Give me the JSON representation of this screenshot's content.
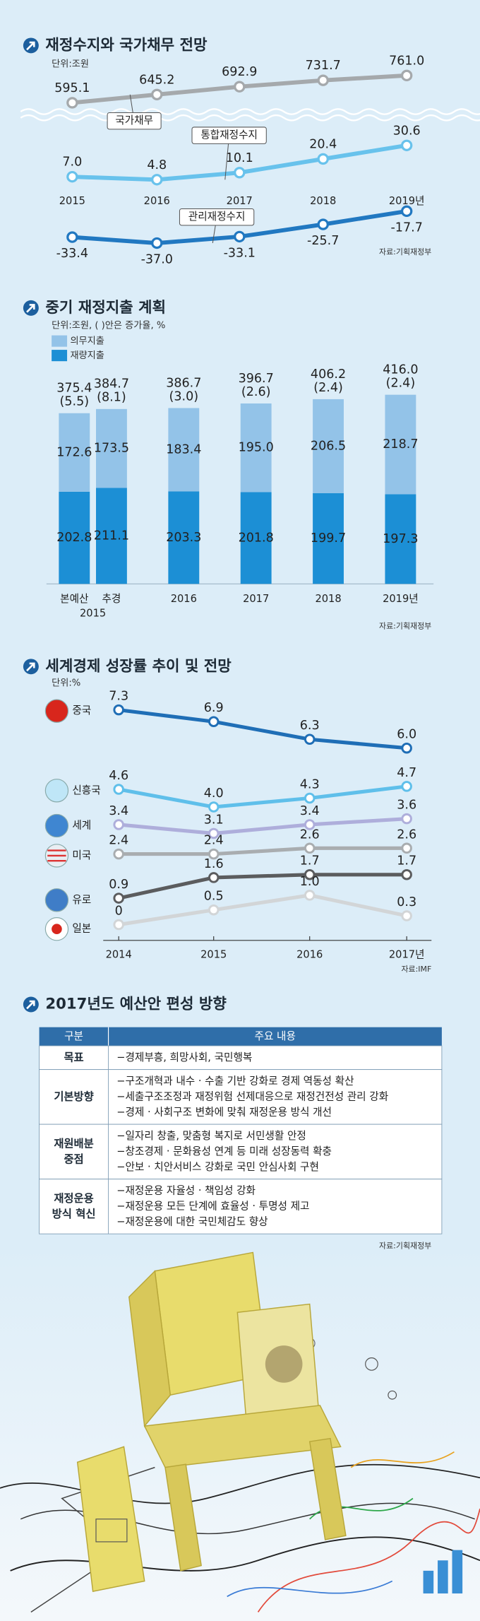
{
  "chart_data": [
    {
      "type": "line",
      "title": "재정수지와 국가채무 전망",
      "unit": "단위:조원",
      "categories": [
        "2015",
        "2016",
        "2017",
        "2018",
        "2019년"
      ],
      "series": [
        {
          "name": "국가채무",
          "color": "#a5a9ac",
          "values": [
            595.1,
            645.2,
            692.9,
            731.7,
            761.0
          ],
          "value_labels": [
            "595.1",
            "645.2",
            "692.9",
            "731.7",
            "761.0"
          ],
          "ylim": [
            560,
            780
          ]
        },
        {
          "name": "통합재정수지",
          "color": "#68c2ec",
          "values": [
            7.0,
            4.8,
            10.1,
            20.4,
            30.6
          ],
          "value_labels": [
            "7.0",
            "4.8",
            "10.1",
            "20.4",
            "30.6"
          ],
          "ylim": [
            0,
            35
          ]
        },
        {
          "name": "관리재정수지",
          "color": "#2178c1",
          "values": [
            -33.4,
            -37.0,
            -33.1,
            -25.7,
            -17.7
          ],
          "value_labels": [
            "-33.4",
            "-37.0",
            "-33.1",
            "-25.7",
            "-17.7"
          ],
          "ylim": [
            -40,
            -15
          ]
        }
      ],
      "source": "자료:기획재정부"
    },
    {
      "type": "bar",
      "stacked": true,
      "title": "중기 재정지출 계획",
      "unit": "단위:조원, ( )안은 증가율, %",
      "categories": [
        "본예산",
        "추경",
        "2016",
        "2017",
        "2018",
        "2019년"
      ],
      "group_label": "2015",
      "series": [
        {
          "name": "의무지출",
          "color": "#93c3e8",
          "values": [
            172.6,
            173.5,
            183.4,
            195.0,
            206.5,
            218.7
          ],
          "value_labels": [
            "172.6",
            "173.5",
            "183.4",
            "195.0",
            "206.5",
            "218.7"
          ]
        },
        {
          "name": "재량지출",
          "color": "#1c8fd5",
          "values": [
            202.8,
            211.1,
            203.3,
            201.8,
            199.7,
            197.3
          ],
          "value_labels": [
            "202.8",
            "211.1",
            "203.3",
            "201.8",
            "199.7",
            "197.3"
          ]
        }
      ],
      "totals": {
        "values": [
          375.4,
          384.7,
          386.7,
          396.7,
          406.2,
          416.0
        ],
        "value_labels": [
          "375.4",
          "384.7",
          "386.7",
          "396.7",
          "406.2",
          "416.0"
        ]
      },
      "growth": {
        "values": [
          5.5,
          8.1,
          3.0,
          2.6,
          2.4,
          2.4
        ],
        "value_labels": [
          "(5.5)",
          "(8.1)",
          "(3.0)",
          "(2.6)",
          "(2.4)",
          "(2.4)"
        ]
      },
      "ylim": [
        0,
        450
      ],
      "source": "자료:기획재정부"
    },
    {
      "type": "line",
      "title": "세계경제 성장률 추이 및 전망",
      "unit": "단위:%",
      "categories": [
        "2014",
        "2015",
        "2016",
        "2017년"
      ],
      "ylim": [
        -0.5,
        8
      ],
      "series": [
        {
          "name": "중국",
          "color": "#1f6eb6",
          "values": [
            7.3,
            6.9,
            6.3,
            6.0
          ],
          "value_labels": [
            "7.3",
            "6.9",
            "6.3",
            "6.0"
          ]
        },
        {
          "name": "신흥국",
          "color": "#5fbfea",
          "values": [
            4.6,
            4.0,
            4.3,
            4.7
          ],
          "value_labels": [
            "4.6",
            "4.0",
            "4.3",
            "4.7"
          ]
        },
        {
          "name": "세계",
          "color": "#aeaedb",
          "values": [
            3.4,
            3.1,
            3.4,
            3.6
          ],
          "value_labels": [
            "3.4",
            "3.1",
            "3.4",
            "3.6"
          ]
        },
        {
          "name": "미국",
          "color": "#a9adb0",
          "values": [
            2.4,
            2.4,
            2.6,
            2.6
          ],
          "value_labels": [
            "2.4",
            "2.4",
            "2.6",
            "2.6"
          ]
        },
        {
          "name": "유로",
          "color": "#5b5c5e",
          "values": [
            0.9,
            1.6,
            1.7,
            1.7
          ],
          "value_labels": [
            "0.9",
            "1.6",
            "1.7",
            "1.7"
          ]
        },
        {
          "name": "일본",
          "color": "#d2d5d7",
          "values": [
            0,
            0.5,
            1.0,
            0.3
          ],
          "value_labels": [
            "0",
            "0.5",
            "1.0",
            "0.3"
          ]
        }
      ],
      "source": "자료:IMF"
    }
  ],
  "table": {
    "title": "2017년도 예산안 편성 방향",
    "header": [
      "구분",
      "주요 내용"
    ],
    "rows": [
      {
        "label": [
          "목표"
        ],
        "items": [
          "−경제부흥, 희망사회, 국민행복"
        ]
      },
      {
        "label": [
          "기본방향"
        ],
        "items": [
          "−구조개혁과 내수 · 수출 기반 강화로 경제 역동성 확산",
          "−세출구조조정과 재정위험 선제대응으로 재정건전성 관리 강화",
          "−경제 · 사회구조 변화에 맞춰 재정운용 방식 개선"
        ]
      },
      {
        "label": [
          "재원배분",
          "중점"
        ],
        "items": [
          "−일자리 창출, 맞춤형 복지로 서민생활 안정",
          "−창조경제 · 문화융성 연계 등 미래 성장동력 확충",
          "−안보 · 치안서비스 강화로 국민 안심사회 구현"
        ]
      },
      {
        "label": [
          "재정운용",
          "방식 혁신"
        ],
        "items": [
          "−재정운용 자율성 · 책임성 강화",
          "−재정운용 모든 단계에 효율성 · 투명성 제고",
          "−재정운용에 대한 국민체감도 향상"
        ]
      }
    ],
    "source": "자료:기획재정부"
  }
}
